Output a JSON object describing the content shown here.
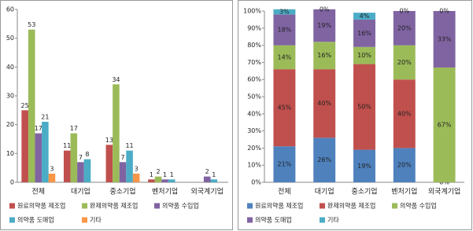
{
  "chart_data": [
    {
      "type": "bar",
      "categories": [
        "전체",
        "대기업",
        "중소기업",
        "벤처기업",
        "외국계기업"
      ],
      "series": [
        {
          "name": "원료의약품 제조업",
          "color": "#c0504d",
          "values": [
            25,
            11,
            13,
            1,
            null
          ]
        },
        {
          "name": "완제의약품 제조업",
          "color": "#9bbb59",
          "values": [
            53,
            17,
            34,
            2,
            null
          ]
        },
        {
          "name": "의약품 수입업",
          "color": "#8064a2",
          "values": [
            17,
            7,
            7,
            1,
            2
          ]
        },
        {
          "name": "의약품 도매업",
          "color": "#4bacc6",
          "values": [
            21,
            8,
            11,
            1,
            1
          ]
        },
        {
          "name": "기타",
          "color": "#f79646",
          "values": [
            3,
            null,
            3,
            null,
            null
          ]
        }
      ],
      "ylim": [
        0,
        60
      ],
      "yticks": [
        0,
        10,
        20,
        30,
        40,
        50,
        60
      ],
      "grid": false
    },
    {
      "type": "stacked_bar",
      "categories": [
        "전체",
        "대기업",
        "중소기업",
        "벤처기업",
        "외국계기업"
      ],
      "series": [
        {
          "name": "원료의약품 제조업",
          "color": "#4f81bd",
          "values": [
            21,
            26,
            19,
            20,
            0
          ],
          "value_labels": [
            "21%",
            "26%",
            "19%",
            "20%",
            "0%"
          ]
        },
        {
          "name": "완제의약품 제조업",
          "color": "#c0504d",
          "values": [
            45,
            40,
            50,
            40,
            null
          ],
          "value_labels": [
            "45%",
            "40%",
            "50%",
            "40%",
            null
          ]
        },
        {
          "name": "의약품 수입업",
          "color": "#9bbb59",
          "values": [
            14,
            16,
            10,
            20,
            67
          ],
          "value_labels": [
            "14%",
            "16%",
            "10%",
            "20%",
            "67%"
          ]
        },
        {
          "name": "의약품 도매업",
          "color": "#8064a2",
          "values": [
            18,
            19,
            16,
            20,
            33
          ],
          "value_labels": [
            "18%",
            "19%",
            "16%",
            "20%",
            "33%"
          ]
        },
        {
          "name": "기타",
          "color": "#4bacc6",
          "values": [
            3,
            0,
            4,
            0,
            0
          ],
          "value_labels": [
            "3%",
            "0%",
            "4%",
            "0%",
            "0%"
          ]
        }
      ],
      "ylim": [
        0,
        100
      ],
      "yticks": [
        {
          "value": 0,
          "label": "0%"
        },
        {
          "value": 10,
          "label": "10%"
        },
        {
          "value": 20,
          "label": "20%"
        },
        {
          "value": 30,
          "label": "30%"
        },
        {
          "value": 40,
          "label": "40%"
        },
        {
          "value": 50,
          "label": "50%"
        },
        {
          "value": 60,
          "label": "60%"
        },
        {
          "value": 70,
          "label": "70%"
        },
        {
          "value": 80,
          "label": "80%"
        },
        {
          "value": 90,
          "label": "90%"
        },
        {
          "value": 100,
          "label": "100%"
        }
      ],
      "grid": false
    }
  ]
}
